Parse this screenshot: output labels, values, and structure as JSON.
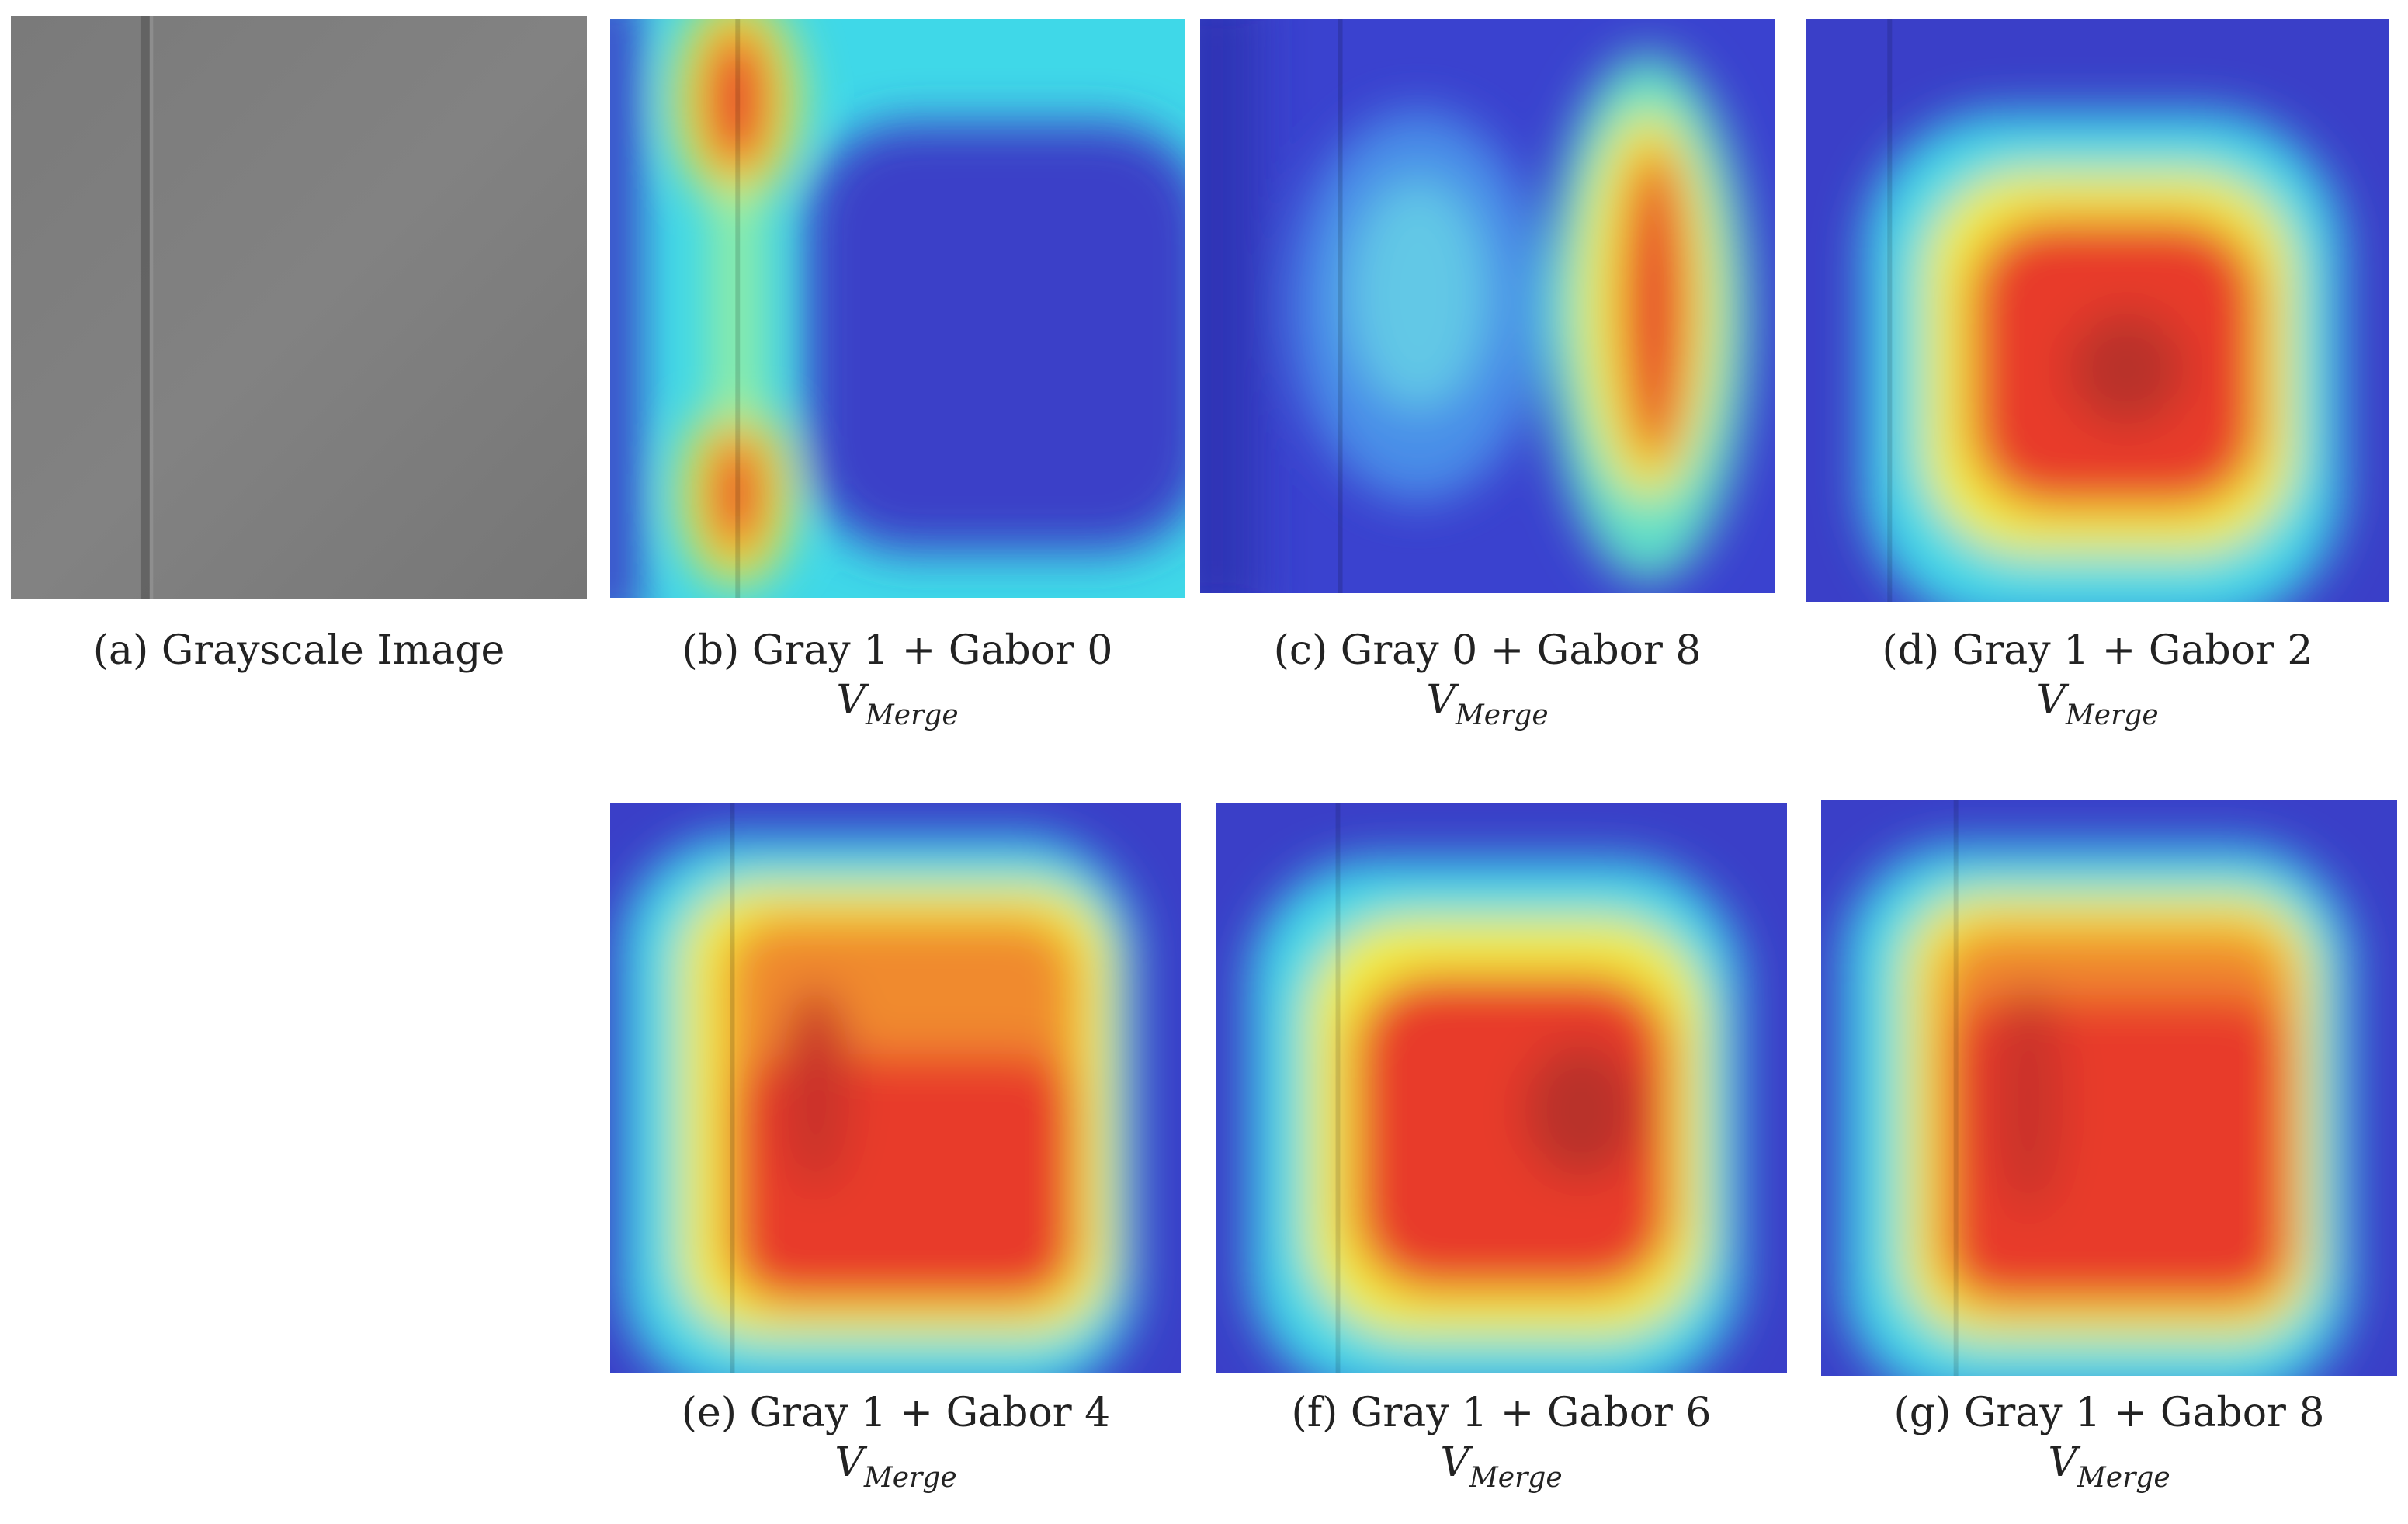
{
  "figure": {
    "panels": [
      {
        "id": "a",
        "caption": "(a) Grayscale Image",
        "var_main": "",
        "var_sub": "",
        "kind": "grayscale"
      },
      {
        "id": "b",
        "caption": "(b) Gray 1 + Gabor 0",
        "var_main": "V",
        "var_sub": "Merge",
        "kind": "heatmap"
      },
      {
        "id": "c",
        "caption": "(c) Gray 0 + Gabor 8",
        "var_main": "V",
        "var_sub": "Merge",
        "kind": "heatmap"
      },
      {
        "id": "d",
        "caption": "(d) Gray 1 + Gabor 2",
        "var_main": "V",
        "var_sub": "Merge",
        "kind": "heatmap"
      },
      {
        "id": "e",
        "caption": "(e) Gray 1 + Gabor 4",
        "var_main": "V",
        "var_sub": "Merge",
        "kind": "heatmap"
      },
      {
        "id": "f",
        "caption": "(f) Gray 1 + Gabor 6",
        "var_main": "V",
        "var_sub": "Merge",
        "kind": "heatmap"
      },
      {
        "id": "g",
        "caption": "(g) Gray 1 + Gabor 8",
        "var_main": "V",
        "var_sub": "Merge",
        "kind": "heatmap"
      }
    ],
    "colors": {
      "heatmap_low": "#3a3fc8",
      "heatmap_mid": "#3fe0e0",
      "heatmap_yellow": "#f2ee3c",
      "heatmap_high": "#e83a2a",
      "gray_surface": "#7b7b7b"
    }
  }
}
